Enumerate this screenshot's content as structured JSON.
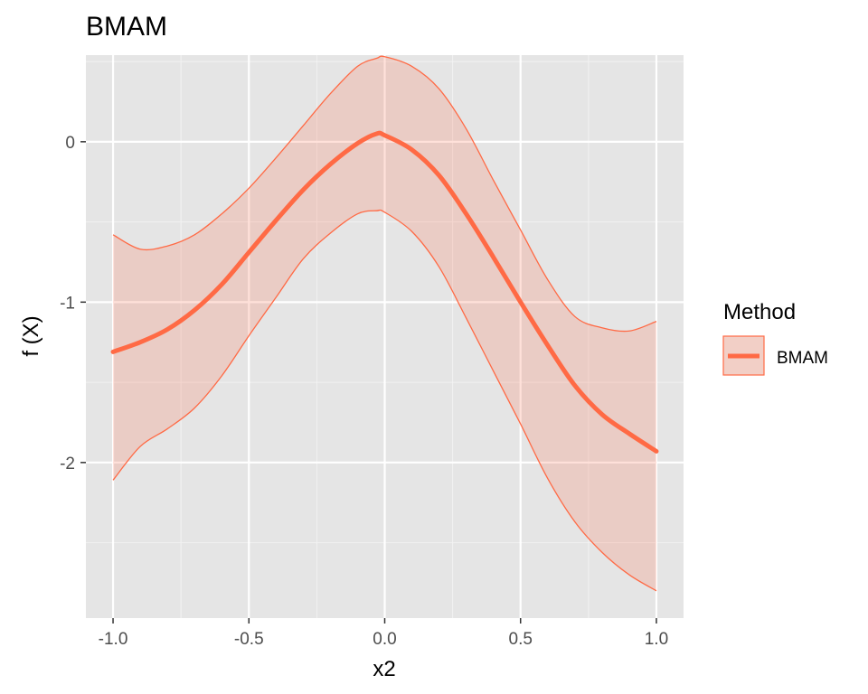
{
  "chart_data": {
    "type": "line",
    "title": "BMAM",
    "xlabel": "x2",
    "ylabel": "f (X)",
    "xlim": [
      -1.1,
      1.1
    ],
    "ylim": [
      -2.97,
      0.54
    ],
    "x_ticks": [
      -1.0,
      -0.5,
      0.0,
      0.5,
      1.0
    ],
    "x_tick_labels": [
      "-1.0",
      "-0.5",
      "0.0",
      "0.5",
      "1.0"
    ],
    "y_ticks": [
      0,
      -1,
      -2
    ],
    "y_tick_labels": [
      "0",
      "-1",
      "-2"
    ],
    "grid": true,
    "legend": {
      "title": "Method",
      "position": "right",
      "entries": [
        "BMAM"
      ]
    },
    "series": [
      {
        "name": "BMAM",
        "color": "#ff6a45",
        "x": [
          -1.0,
          -0.9,
          -0.8,
          -0.7,
          -0.6,
          -0.5,
          -0.4,
          -0.3,
          -0.2,
          -0.1,
          -0.03,
          0.0,
          0.1,
          0.2,
          0.3,
          0.4,
          0.5,
          0.6,
          0.7,
          0.8,
          0.9,
          1.0
        ],
        "y": [
          -1.31,
          -1.25,
          -1.17,
          -1.05,
          -0.89,
          -0.69,
          -0.49,
          -0.3,
          -0.14,
          -0.01,
          0.05,
          0.04,
          -0.05,
          -0.21,
          -0.45,
          -0.72,
          -1.0,
          -1.27,
          -1.52,
          -1.7,
          -1.82,
          -1.93
        ],
        "lower": [
          -2.11,
          -1.9,
          -1.79,
          -1.66,
          -1.46,
          -1.21,
          -0.97,
          -0.73,
          -0.57,
          -0.45,
          -0.43,
          -0.44,
          -0.56,
          -0.78,
          -1.1,
          -1.43,
          -1.76,
          -2.1,
          -2.37,
          -2.56,
          -2.7,
          -2.8
        ],
        "upper": [
          -0.58,
          -0.67,
          -0.65,
          -0.58,
          -0.45,
          -0.29,
          -0.1,
          0.1,
          0.3,
          0.47,
          0.52,
          0.53,
          0.47,
          0.33,
          0.08,
          -0.24,
          -0.55,
          -0.86,
          -1.09,
          -1.16,
          -1.18,
          -1.12
        ]
      }
    ]
  }
}
